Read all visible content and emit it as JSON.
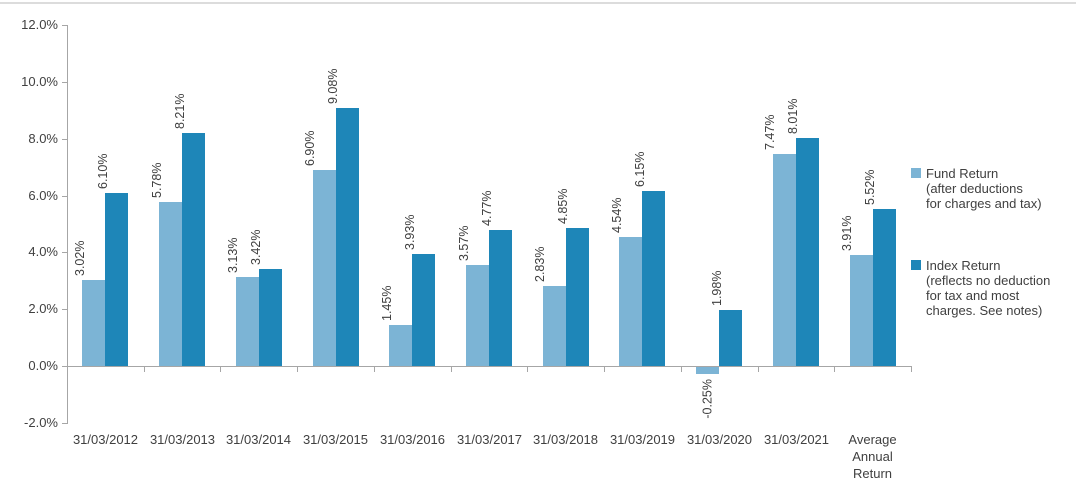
{
  "chart_data": {
    "type": "bar",
    "title": "",
    "xlabel": "",
    "ylabel": "",
    "categories": [
      "31/03/2012",
      "31/03/2013",
      "31/03/2014",
      "31/03/2015",
      "31/03/2016",
      "31/03/2017",
      "31/03/2018",
      "31/03/2019",
      "31/03/2020",
      "31/03/2021",
      "Average Annual Return"
    ],
    "series": [
      {
        "name": "Fund Return (after deductions for charges and tax)",
        "color": "#7CB4D5",
        "values": [
          3.02,
          5.78,
          3.13,
          6.9,
          1.45,
          3.57,
          2.83,
          4.54,
          -0.25,
          7.47,
          3.91
        ],
        "labels": [
          "3.02%",
          "5.78%",
          "3.13%",
          "6.90%",
          "1.45%",
          "3.57%",
          "2.83%",
          "4.54%",
          "-0.25%",
          "7.47%",
          "3.91%"
        ]
      },
      {
        "name": "Index Return (reflects no deduction for tax and most charges. See notes)",
        "color": "#1E86B8",
        "values": [
          6.1,
          8.21,
          3.42,
          9.08,
          3.93,
          4.77,
          4.85,
          6.15,
          1.98,
          8.01,
          5.52
        ],
        "labels": [
          "6.10%",
          "8.21%",
          "3.42%",
          "9.08%",
          "3.93%",
          "4.77%",
          "4.85%",
          "6.15%",
          "1.98%",
          "8.01%",
          "5.52%"
        ]
      }
    ],
    "ylim": [
      -2,
      12
    ],
    "ytick_step": 2,
    "ytick_labels_top_to_bottom": [
      "12.0%",
      "10.0%",
      "8.0%",
      "6.0%",
      "4.0%",
      "2.0%",
      "0.0%",
      "-2.0%"
    ],
    "grid": false,
    "data_labels_rotated": true,
    "legend_position": "right",
    "legend": [
      {
        "swatch": "fund-return",
        "lines": [
          "Fund Return",
          "(after deductions",
          "for charges and tax)"
        ],
        "color": "#7CB4D5"
      },
      {
        "swatch": "index-return",
        "lines": [
          "Index Return",
          "(reflects no deduction",
          "for tax and most",
          "charges. See notes)"
        ],
        "color": "#1E86B8"
      }
    ],
    "colors": {
      "fund_bar": "#7CB4D5",
      "index_bar": "#1E86B8",
      "axis": "#A6A6A6",
      "text": "#404040",
      "top_rule": "#DCDCDC"
    }
  }
}
